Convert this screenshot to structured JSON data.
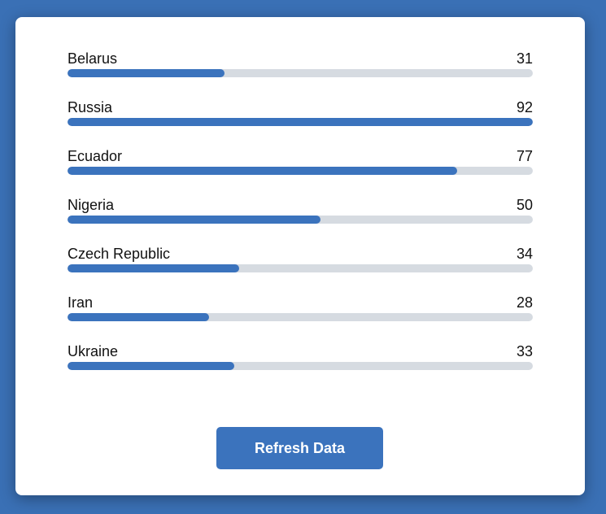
{
  "chart_data": {
    "type": "bar",
    "orientation": "horizontal",
    "categories": [
      "Belarus",
      "Russia",
      "Ecuador",
      "Nigeria",
      "Czech Republic",
      "Iran",
      "Ukraine"
    ],
    "values": [
      31,
      92,
      77,
      50,
      34,
      28,
      33
    ],
    "xlim": [
      0,
      92
    ],
    "grid": false
  },
  "button": {
    "refresh_label": "Refresh Data"
  },
  "colors": {
    "background": "#3a70b5",
    "bar_fill": "#3b73bd",
    "bar_track": "#d6dbe1",
    "button": "#3b73bd"
  }
}
